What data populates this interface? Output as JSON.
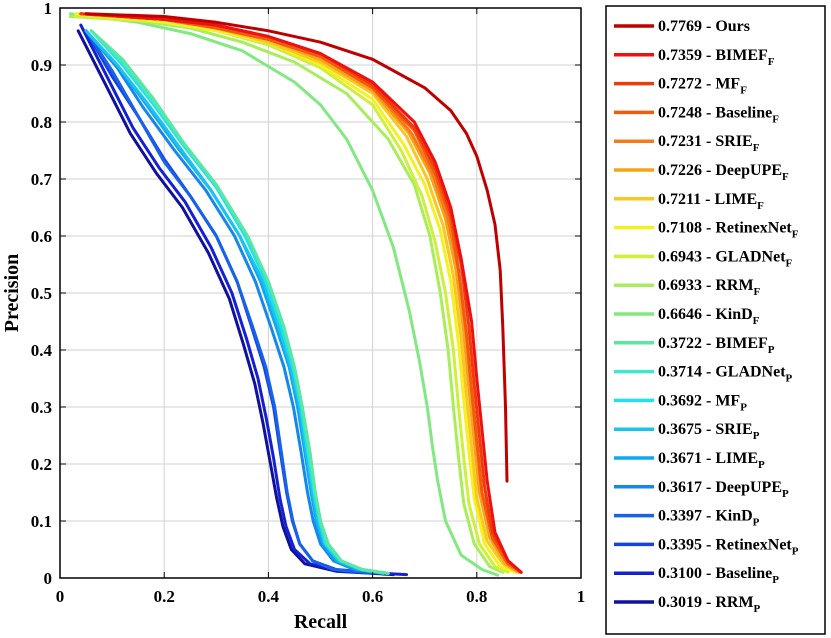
{
  "chart_data": {
    "type": "line",
    "title": "",
    "xlabel": "Recall",
    "ylabel": "Precision",
    "xlim": [
      0,
      1
    ],
    "ylim": [
      0,
      1
    ],
    "grid": true,
    "legend_position": "right-outside",
    "xticks": [
      "0",
      "0.2",
      "0.4",
      "0.6",
      "0.8",
      "1"
    ],
    "yticks": [
      "0",
      "0.1",
      "0.2",
      "0.3",
      "0.4",
      "0.5",
      "0.6",
      "0.7",
      "0.8",
      "0.9",
      "1"
    ],
    "series": [
      {
        "label": "0.7769 - Ours",
        "score": "0.7769",
        "name": "Ours",
        "sub": "",
        "color": "#c00000",
        "x": [
          0.05,
          0.2,
          0.3,
          0.4,
          0.5,
          0.6,
          0.7,
          0.75,
          0.78,
          0.8,
          0.82,
          0.835,
          0.845,
          0.85,
          0.855,
          0.858
        ],
        "y": [
          0.99,
          0.985,
          0.975,
          0.96,
          0.94,
          0.91,
          0.86,
          0.82,
          0.78,
          0.74,
          0.68,
          0.62,
          0.54,
          0.44,
          0.3,
          0.17
        ]
      },
      {
        "label": "0.7359 - BIMEF_F",
        "score": "0.7359",
        "name": "BIMEF",
        "sub": "F",
        "color": "#ee1111",
        "x": [
          0.05,
          0.2,
          0.3,
          0.4,
          0.5,
          0.6,
          0.68,
          0.72,
          0.75,
          0.77,
          0.79,
          0.8,
          0.81,
          0.82,
          0.835,
          0.86,
          0.885
        ],
        "y": [
          0.99,
          0.98,
          0.97,
          0.95,
          0.92,
          0.87,
          0.8,
          0.73,
          0.65,
          0.56,
          0.45,
          0.35,
          0.26,
          0.17,
          0.08,
          0.03,
          0.01
        ]
      },
      {
        "label": "0.7272 - MF_F",
        "score": "0.7272",
        "name": "MF",
        "sub": "F",
        "color": "#f03a0a",
        "x": [
          0.04,
          0.2,
          0.3,
          0.4,
          0.5,
          0.6,
          0.68,
          0.72,
          0.75,
          0.77,
          0.785,
          0.795,
          0.805,
          0.815,
          0.83,
          0.86,
          0.885
        ],
        "y": [
          0.99,
          0.98,
          0.97,
          0.95,
          0.92,
          0.865,
          0.79,
          0.72,
          0.64,
          0.55,
          0.44,
          0.34,
          0.25,
          0.16,
          0.08,
          0.03,
          0.01
        ]
      },
      {
        "label": "0.7248 - Baseline_F",
        "score": "0.7248",
        "name": "Baseline",
        "sub": "F",
        "color": "#f25a10",
        "x": [
          0.04,
          0.2,
          0.3,
          0.4,
          0.5,
          0.6,
          0.68,
          0.72,
          0.75,
          0.765,
          0.78,
          0.79,
          0.8,
          0.81,
          0.83,
          0.86,
          0.885
        ],
        "y": [
          0.99,
          0.98,
          0.965,
          0.945,
          0.915,
          0.86,
          0.785,
          0.71,
          0.63,
          0.54,
          0.43,
          0.33,
          0.24,
          0.15,
          0.07,
          0.025,
          0.01
        ]
      },
      {
        "label": "0.7231 - SRIE_F",
        "score": "0.7231",
        "name": "SRIE",
        "sub": "F",
        "color": "#f57a18",
        "x": [
          0.04,
          0.2,
          0.3,
          0.4,
          0.5,
          0.6,
          0.675,
          0.715,
          0.745,
          0.765,
          0.78,
          0.79,
          0.8,
          0.81,
          0.83,
          0.86,
          0.885
        ],
        "y": [
          0.99,
          0.98,
          0.965,
          0.945,
          0.915,
          0.86,
          0.78,
          0.71,
          0.63,
          0.54,
          0.43,
          0.33,
          0.24,
          0.15,
          0.07,
          0.025,
          0.01
        ]
      },
      {
        "label": "0.7226 - DeepUPE_F",
        "score": "0.7226",
        "name": "DeepUPE",
        "sub": "F",
        "color": "#f7a21a",
        "x": [
          0.04,
          0.2,
          0.3,
          0.4,
          0.5,
          0.6,
          0.67,
          0.71,
          0.74,
          0.76,
          0.775,
          0.785,
          0.795,
          0.805,
          0.825,
          0.855,
          0.88
        ],
        "y": [
          0.99,
          0.98,
          0.965,
          0.945,
          0.91,
          0.855,
          0.78,
          0.71,
          0.63,
          0.54,
          0.43,
          0.33,
          0.24,
          0.15,
          0.07,
          0.025,
          0.01
        ]
      },
      {
        "label": "0.7211 - LIME_F",
        "score": "0.7211",
        "name": "LIME",
        "sub": "F",
        "color": "#f8c81e",
        "x": [
          0.04,
          0.2,
          0.3,
          0.4,
          0.5,
          0.6,
          0.665,
          0.705,
          0.735,
          0.755,
          0.77,
          0.78,
          0.79,
          0.8,
          0.82,
          0.85,
          0.88
        ],
        "y": [
          0.99,
          0.98,
          0.965,
          0.94,
          0.905,
          0.85,
          0.775,
          0.7,
          0.62,
          0.53,
          0.42,
          0.32,
          0.23,
          0.14,
          0.065,
          0.025,
          0.01
        ]
      },
      {
        "label": "0.7108 - RetinexNet_F",
        "score": "0.7108",
        "name": "RetinexNet",
        "sub": "F",
        "color": "#f5f020",
        "x": [
          0.03,
          0.2,
          0.3,
          0.4,
          0.5,
          0.6,
          0.66,
          0.7,
          0.73,
          0.75,
          0.765,
          0.775,
          0.785,
          0.795,
          0.815,
          0.845,
          0.875
        ],
        "y": [
          0.99,
          0.975,
          0.96,
          0.94,
          0.9,
          0.84,
          0.76,
          0.69,
          0.61,
          0.52,
          0.41,
          0.31,
          0.22,
          0.14,
          0.06,
          0.02,
          0.01
        ]
      },
      {
        "label": "0.6943 - GLADNet_F",
        "score": "0.6943",
        "name": "GLADNet",
        "sub": "F",
        "color": "#cef03a",
        "x": [
          0.03,
          0.2,
          0.3,
          0.4,
          0.5,
          0.6,
          0.655,
          0.695,
          0.72,
          0.74,
          0.755,
          0.765,
          0.775,
          0.785,
          0.805,
          0.835,
          0.86
        ],
        "y": [
          0.985,
          0.975,
          0.96,
          0.935,
          0.895,
          0.83,
          0.75,
          0.67,
          0.59,
          0.5,
          0.4,
          0.3,
          0.21,
          0.13,
          0.06,
          0.02,
          0.01
        ]
      },
      {
        "label": "0.6933 - RRM_F",
        "score": "0.6933",
        "name": "RRM",
        "sub": "F",
        "color": "#a8ee5a",
        "x": [
          0.02,
          0.15,
          0.25,
          0.35,
          0.45,
          0.55,
          0.63,
          0.68,
          0.71,
          0.73,
          0.745,
          0.755,
          0.765,
          0.775,
          0.795,
          0.825,
          0.85
        ],
        "y": [
          0.985,
          0.978,
          0.965,
          0.94,
          0.905,
          0.85,
          0.77,
          0.69,
          0.6,
          0.5,
          0.4,
          0.3,
          0.21,
          0.13,
          0.06,
          0.02,
          0.01
        ]
      },
      {
        "label": "0.6646 - KinD_F",
        "score": "0.6646",
        "name": "KinD",
        "sub": "F",
        "color": "#82e882",
        "x": [
          0.02,
          0.15,
          0.25,
          0.35,
          0.45,
          0.5,
          0.55,
          0.6,
          0.64,
          0.67,
          0.69,
          0.705,
          0.715,
          0.725,
          0.74,
          0.77,
          0.81,
          0.84
        ],
        "y": [
          0.99,
          0.975,
          0.955,
          0.925,
          0.87,
          0.83,
          0.77,
          0.68,
          0.58,
          0.47,
          0.38,
          0.3,
          0.23,
          0.17,
          0.1,
          0.04,
          0.015,
          0.005
        ]
      },
      {
        "label": "0.3722 - BIMEF_P",
        "score": "0.3722",
        "name": "BIMEF",
        "sub": "P",
        "color": "#5ae8a0",
        "x": [
          0.06,
          0.12,
          0.18,
          0.24,
          0.3,
          0.36,
          0.4,
          0.43,
          0.45,
          0.465,
          0.48,
          0.49,
          0.5,
          0.515,
          0.54,
          0.58,
          0.63
        ],
        "y": [
          0.96,
          0.91,
          0.84,
          0.76,
          0.69,
          0.6,
          0.52,
          0.44,
          0.37,
          0.3,
          0.22,
          0.15,
          0.1,
          0.06,
          0.03,
          0.015,
          0.008
        ]
      },
      {
        "label": "0.3714 - GLADNet_P",
        "score": "0.3714",
        "name": "GLADNet",
        "sub": "P",
        "color": "#3ee8cc",
        "x": [
          0.06,
          0.12,
          0.18,
          0.24,
          0.3,
          0.36,
          0.4,
          0.43,
          0.45,
          0.465,
          0.478,
          0.49,
          0.5,
          0.512,
          0.54,
          0.58,
          0.63
        ],
        "y": [
          0.96,
          0.905,
          0.835,
          0.76,
          0.69,
          0.6,
          0.52,
          0.44,
          0.37,
          0.3,
          0.22,
          0.15,
          0.1,
          0.06,
          0.03,
          0.015,
          0.008
        ]
      },
      {
        "label": "0.3692 - MF_P",
        "score": "0.3692",
        "name": "MF",
        "sub": "P",
        "color": "#22e0ec",
        "x": [
          0.06,
          0.12,
          0.18,
          0.24,
          0.3,
          0.355,
          0.395,
          0.425,
          0.447,
          0.463,
          0.476,
          0.488,
          0.498,
          0.51,
          0.538,
          0.58,
          0.63
        ],
        "y": [
          0.96,
          0.9,
          0.83,
          0.755,
          0.685,
          0.6,
          0.52,
          0.44,
          0.37,
          0.3,
          0.22,
          0.15,
          0.1,
          0.06,
          0.03,
          0.015,
          0.008
        ]
      },
      {
        "label": "0.3675 - SRIE_P",
        "score": "0.3675",
        "name": "SRIE",
        "sub": "P",
        "color": "#18c4ee",
        "x": [
          0.05,
          0.11,
          0.17,
          0.23,
          0.29,
          0.345,
          0.39,
          0.42,
          0.443,
          0.46,
          0.473,
          0.485,
          0.495,
          0.508,
          0.535,
          0.575,
          0.63
        ],
        "y": [
          0.96,
          0.9,
          0.83,
          0.755,
          0.68,
          0.6,
          0.52,
          0.44,
          0.37,
          0.3,
          0.22,
          0.15,
          0.1,
          0.06,
          0.03,
          0.015,
          0.008
        ]
      },
      {
        "label": "0.3671 - LIME_P",
        "score": "0.3671",
        "name": "LIME",
        "sub": "P",
        "color": "#12a6ee",
        "x": [
          0.05,
          0.11,
          0.17,
          0.23,
          0.29,
          0.345,
          0.385,
          0.415,
          0.44,
          0.456,
          0.47,
          0.482,
          0.492,
          0.505,
          0.53,
          0.57,
          0.62
        ],
        "y": [
          0.96,
          0.9,
          0.825,
          0.75,
          0.68,
          0.6,
          0.52,
          0.44,
          0.37,
          0.3,
          0.22,
          0.15,
          0.1,
          0.06,
          0.03,
          0.015,
          0.008
        ]
      },
      {
        "label": "0.3617 - DeepUPE_P",
        "score": "0.3617",
        "name": "DeepUPE",
        "sub": "P",
        "color": "#1488ee",
        "x": [
          0.05,
          0.11,
          0.16,
          0.22,
          0.28,
          0.335,
          0.375,
          0.405,
          0.43,
          0.448,
          0.463,
          0.475,
          0.486,
          0.5,
          0.525,
          0.565,
          0.62
        ],
        "y": [
          0.96,
          0.895,
          0.825,
          0.75,
          0.68,
          0.6,
          0.52,
          0.44,
          0.37,
          0.3,
          0.22,
          0.15,
          0.1,
          0.06,
          0.03,
          0.015,
          0.008
        ]
      },
      {
        "label": "0.3397 - KinD_P",
        "score": "0.3397",
        "name": "KinD",
        "sub": "P",
        "color": "#1662ea",
        "x": [
          0.05,
          0.1,
          0.15,
          0.2,
          0.25,
          0.3,
          0.34,
          0.37,
          0.395,
          0.412,
          0.425,
          0.436,
          0.447,
          0.46,
          0.485,
          0.525,
          0.6
        ],
        "y": [
          0.96,
          0.89,
          0.81,
          0.73,
          0.67,
          0.6,
          0.52,
          0.44,
          0.37,
          0.3,
          0.22,
          0.15,
          0.1,
          0.06,
          0.03,
          0.015,
          0.008
        ]
      },
      {
        "label": "0.3395 - RetinexNet_P",
        "score": "0.3395",
        "name": "RetinexNet",
        "sub": "P",
        "color": "#1840e4",
        "x": [
          0.05,
          0.1,
          0.15,
          0.2,
          0.25,
          0.3,
          0.34,
          0.368,
          0.392,
          0.41,
          0.423,
          0.435,
          0.446,
          0.46,
          0.485,
          0.53,
          0.62
        ],
        "y": [
          0.96,
          0.88,
          0.81,
          0.735,
          0.67,
          0.6,
          0.52,
          0.44,
          0.37,
          0.3,
          0.22,
          0.15,
          0.1,
          0.06,
          0.03,
          0.015,
          0.008
        ]
      },
      {
        "label": "0.3100 - Baseline_P",
        "score": "0.3100",
        "name": "Baseline",
        "sub": "P",
        "color": "#1420d4",
        "x": [
          0.04,
          0.09,
          0.14,
          0.19,
          0.24,
          0.29,
          0.33,
          0.358,
          0.38,
          0.396,
          0.41,
          0.422,
          0.434,
          0.45,
          0.48,
          0.54,
          0.665
        ],
        "y": [
          0.97,
          0.88,
          0.79,
          0.72,
          0.66,
          0.58,
          0.5,
          0.42,
          0.35,
          0.28,
          0.21,
          0.14,
          0.09,
          0.05,
          0.025,
          0.012,
          0.006
        ]
      },
      {
        "label": "0.3019 - RRM_P",
        "score": "0.3019",
        "name": "RRM",
        "sub": "P",
        "color": "#1010a0",
        "x": [
          0.035,
          0.085,
          0.135,
          0.185,
          0.235,
          0.285,
          0.325,
          0.352,
          0.374,
          0.39,
          0.404,
          0.416,
          0.428,
          0.444,
          0.47,
          0.53,
          0.64
        ],
        "y": [
          0.96,
          0.87,
          0.78,
          0.71,
          0.65,
          0.57,
          0.49,
          0.41,
          0.34,
          0.27,
          0.2,
          0.14,
          0.09,
          0.05,
          0.025,
          0.012,
          0.006
        ]
      }
    ]
  }
}
